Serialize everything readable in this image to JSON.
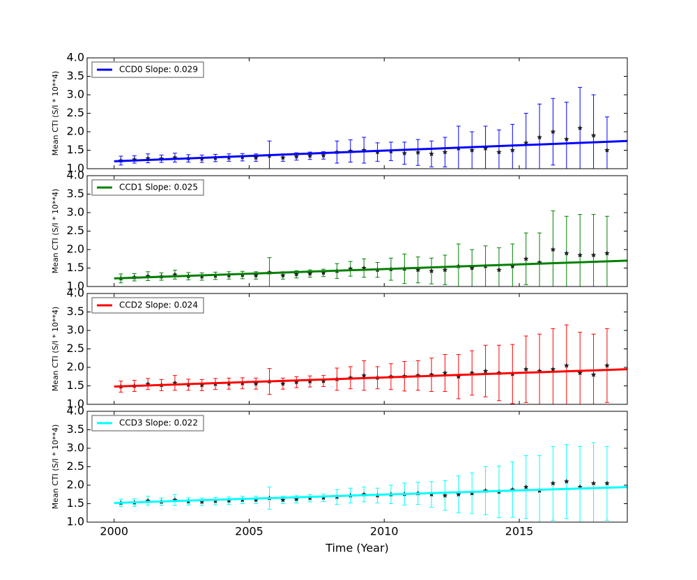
{
  "chart_data": [
    {
      "type": "errorbar",
      "ylabel": "Mean CTI (S/I * 10**4)",
      "xlim": [
        1999,
        2019
      ],
      "xticks": [
        2000,
        2005,
        2010,
        2015
      ],
      "ylim": [
        1,
        4
      ],
      "yticks": [
        {
          "value": 1,
          "label": "1.0"
        },
        {
          "value": 1.5,
          "label": "1.5"
        },
        {
          "value": 2,
          "label": "2.0"
        },
        {
          "value": 2.5,
          "label": "2.5"
        },
        {
          "value": 3,
          "label": "3.0"
        },
        {
          "value": 3.5,
          "label": "3.5"
        },
        {
          "value": 4,
          "label": "4.0"
        }
      ],
      "legend": "upper left",
      "x": [
        2000.25,
        2000.75,
        2001.25,
        2001.75,
        2002.25,
        2002.75,
        2003.25,
        2003.75,
        2004.25,
        2004.75,
        2005.25,
        2005.75,
        2006.25,
        2006.75,
        2007.25,
        2007.75,
        2008.25,
        2008.75,
        2009.25,
        2009.75,
        2010.25,
        2010.75,
        2011.25,
        2011.75,
        2012.25,
        2012.75,
        2013.25,
        2013.75,
        2014.25,
        2014.75,
        2015.25,
        2015.75,
        2016.25,
        2016.75,
        2017.25,
        2017.75,
        2018.25
      ],
      "series": [
        {
          "name": "CCD0 Slope: 0.029",
          "color": "#0000ff",
          "values": [
            1.22,
            1.25,
            1.28,
            1.27,
            1.3,
            1.28,
            1.27,
            1.29,
            1.3,
            1.31,
            1.3,
            1.35,
            1.3,
            1.33,
            1.35,
            1.36,
            1.45,
            1.48,
            1.5,
            1.45,
            1.47,
            1.42,
            1.44,
            1.4,
            1.45,
            1.55,
            1.5,
            1.55,
            1.45,
            1.5,
            1.7,
            1.85,
            2.0,
            1.8,
            2.1,
            1.9,
            1.5
          ],
          "errors": [
            0.12,
            0.1,
            0.12,
            0.1,
            0.12,
            0.1,
            0.1,
            0.1,
            0.1,
            0.1,
            0.1,
            0.4,
            0.1,
            0.1,
            0.1,
            0.1,
            0.3,
            0.3,
            0.35,
            0.25,
            0.25,
            0.3,
            0.35,
            0.35,
            0.4,
            0.6,
            0.5,
            0.6,
            0.6,
            0.7,
            0.8,
            0.9,
            0.9,
            1.0,
            1.1,
            1.1,
            0.9
          ]
        }
      ],
      "fit": {
        "x": [
          2000,
          2019
        ],
        "values": [
          1.2,
          1.75
        ]
      }
    },
    {
      "type": "errorbar",
      "ylabel": "Mean CTI (S/I * 10**4)",
      "xlim": [
        1999,
        2019
      ],
      "xticks": [
        2000,
        2005,
        2010,
        2015
      ],
      "ylim": [
        1,
        4
      ],
      "yticks": [
        {
          "value": 1,
          "label": "1.0"
        },
        {
          "value": 1.5,
          "label": "1.5"
        },
        {
          "value": 2,
          "label": "2.0"
        },
        {
          "value": 2.5,
          "label": "2.5"
        },
        {
          "value": 3,
          "label": "3.0"
        },
        {
          "value": 3.5,
          "label": "3.5"
        },
        {
          "value": 4,
          "label": "4.0"
        }
      ],
      "legend": "upper left",
      "x": [
        2000.25,
        2000.75,
        2001.25,
        2001.75,
        2002.25,
        2002.75,
        2003.25,
        2003.75,
        2004.25,
        2004.75,
        2005.25,
        2005.75,
        2006.25,
        2006.75,
        2007.25,
        2007.75,
        2008.25,
        2008.75,
        2009.25,
        2009.75,
        2010.25,
        2010.75,
        2011.25,
        2011.75,
        2012.25,
        2012.75,
        2013.25,
        2013.75,
        2014.25,
        2014.75,
        2015.25,
        2015.75,
        2016.25,
        2016.75,
        2017.25,
        2017.75,
        2018.25
      ],
      "series": [
        {
          "name": "CCD1 Slope: 0.025",
          "color": "#008000",
          "values": [
            1.22,
            1.25,
            1.28,
            1.27,
            1.32,
            1.28,
            1.27,
            1.29,
            1.3,
            1.31,
            1.3,
            1.38,
            1.3,
            1.33,
            1.35,
            1.37,
            1.42,
            1.48,
            1.5,
            1.45,
            1.47,
            1.48,
            1.45,
            1.42,
            1.45,
            1.55,
            1.5,
            1.55,
            1.45,
            1.55,
            1.75,
            1.65,
            2.0,
            1.9,
            1.85,
            1.85,
            1.9
          ],
          "errors": [
            0.12,
            0.1,
            0.12,
            0.1,
            0.12,
            0.1,
            0.1,
            0.1,
            0.1,
            0.1,
            0.1,
            0.4,
            0.1,
            0.1,
            0.1,
            0.1,
            0.2,
            0.2,
            0.25,
            0.2,
            0.3,
            0.4,
            0.35,
            0.35,
            0.4,
            0.6,
            0.5,
            0.55,
            0.6,
            0.6,
            0.7,
            0.8,
            1.05,
            1.0,
            1.1,
            1.1,
            1.0
          ]
        }
      ],
      "fit": {
        "x": [
          2000,
          2019
        ],
        "values": [
          1.22,
          1.7
        ]
      }
    },
    {
      "type": "errorbar",
      "ylabel": "Mean CTI (S/I * 10**4)",
      "xlim": [
        1999,
        2019
      ],
      "xticks": [
        2000,
        2005,
        2010,
        2015
      ],
      "ylim": [
        1,
        4
      ],
      "yticks": [
        {
          "value": 1,
          "label": "1.0"
        },
        {
          "value": 1.5,
          "label": "1.5"
        },
        {
          "value": 2,
          "label": "2.0"
        },
        {
          "value": 2.5,
          "label": "2.5"
        },
        {
          "value": 3,
          "label": "3.0"
        },
        {
          "value": 3.5,
          "label": "3.5"
        },
        {
          "value": 4,
          "label": "4.0"
        }
      ],
      "legend": "upper left",
      "x": [
        2000.25,
        2000.75,
        2001.25,
        2001.75,
        2002.25,
        2002.75,
        2003.25,
        2003.75,
        2004.25,
        2004.75,
        2005.25,
        2005.75,
        2006.25,
        2006.75,
        2007.25,
        2007.75,
        2008.25,
        2008.75,
        2009.25,
        2009.75,
        2010.25,
        2010.75,
        2011.25,
        2011.75,
        2012.25,
        2012.75,
        2013.25,
        2013.75,
        2014.25,
        2014.75,
        2015.25,
        2015.75,
        2016.25,
        2016.75,
        2017.25,
        2017.75,
        2018.25
      ],
      "series": [
        {
          "name": "CCD2 Slope: 0.024",
          "color": "#ff0000",
          "values": [
            1.48,
            1.5,
            1.55,
            1.52,
            1.58,
            1.53,
            1.52,
            1.55,
            1.56,
            1.57,
            1.56,
            1.62,
            1.56,
            1.6,
            1.62,
            1.63,
            1.68,
            1.72,
            1.78,
            1.72,
            1.75,
            1.76,
            1.78,
            1.8,
            1.85,
            1.75,
            1.85,
            1.9,
            1.85,
            1.82,
            1.95,
            1.9,
            1.95,
            2.05,
            1.85,
            1.8,
            2.05
          ],
          "errors": [
            0.15,
            0.15,
            0.15,
            0.15,
            0.2,
            0.15,
            0.15,
            0.15,
            0.15,
            0.15,
            0.15,
            0.35,
            0.15,
            0.15,
            0.15,
            0.15,
            0.3,
            0.3,
            0.4,
            0.3,
            0.35,
            0.4,
            0.4,
            0.45,
            0.5,
            0.6,
            0.6,
            0.7,
            0.75,
            0.8,
            0.9,
            1.0,
            1.1,
            1.1,
            1.1,
            1.1,
            1.0
          ]
        }
      ],
      "fit": {
        "x": [
          2000,
          2019
        ],
        "values": [
          1.48,
          1.95
        ]
      }
    },
    {
      "type": "errorbar",
      "ylabel": "Mean CTI (S/I * 10**4)",
      "xlabel": "Time (Year)",
      "xlim": [
        1999,
        2019
      ],
      "xticks": [
        2000,
        2005,
        2010,
        2015
      ],
      "ylim": [
        1,
        4
      ],
      "yticks": [
        {
          "value": 1,
          "label": "1.0"
        },
        {
          "value": 1.5,
          "label": "1.5"
        },
        {
          "value": 2,
          "label": "2.0"
        },
        {
          "value": 2.5,
          "label": "2.5"
        },
        {
          "value": 3,
          "label": "3.0"
        },
        {
          "value": 3.5,
          "label": "3.5"
        },
        {
          "value": 4,
          "label": "4.0"
        }
      ],
      "legend": "upper left",
      "x": [
        2000.25,
        2000.75,
        2001.25,
        2001.75,
        2002.25,
        2002.75,
        2003.25,
        2003.75,
        2004.25,
        2004.75,
        2005.25,
        2005.75,
        2006.25,
        2006.75,
        2007.25,
        2007.75,
        2008.25,
        2008.75,
        2009.25,
        2009.75,
        2010.25,
        2010.75,
        2011.25,
        2011.75,
        2012.25,
        2012.75,
        2013.25,
        2013.75,
        2014.25,
        2014.75,
        2015.25,
        2015.75,
        2016.25,
        2016.75,
        2017.25,
        2017.75,
        2018.25
      ],
      "series": [
        {
          "name": "CCD3 Slope: 0.022",
          "color": "#00ffff",
          "values": [
            1.52,
            1.53,
            1.58,
            1.55,
            1.6,
            1.56,
            1.55,
            1.57,
            1.58,
            1.6,
            1.6,
            1.65,
            1.6,
            1.62,
            1.65,
            1.66,
            1.68,
            1.72,
            1.75,
            1.72,
            1.75,
            1.76,
            1.78,
            1.75,
            1.72,
            1.75,
            1.78,
            1.85,
            1.82,
            1.88,
            1.95,
            1.85,
            2.05,
            2.1,
            1.95,
            2.05,
            2.05
          ],
          "errors": [
            0.1,
            0.1,
            0.12,
            0.1,
            0.15,
            0.1,
            0.1,
            0.1,
            0.1,
            0.1,
            0.1,
            0.3,
            0.1,
            0.1,
            0.1,
            0.1,
            0.2,
            0.2,
            0.2,
            0.2,
            0.25,
            0.3,
            0.3,
            0.35,
            0.4,
            0.5,
            0.55,
            0.65,
            0.7,
            0.75,
            0.85,
            0.95,
            1.0,
            1.0,
            1.1,
            1.1,
            1.0
          ]
        }
      ],
      "fit": {
        "x": [
          2000,
          2019
        ],
        "values": [
          1.52,
          1.95
        ]
      }
    }
  ]
}
